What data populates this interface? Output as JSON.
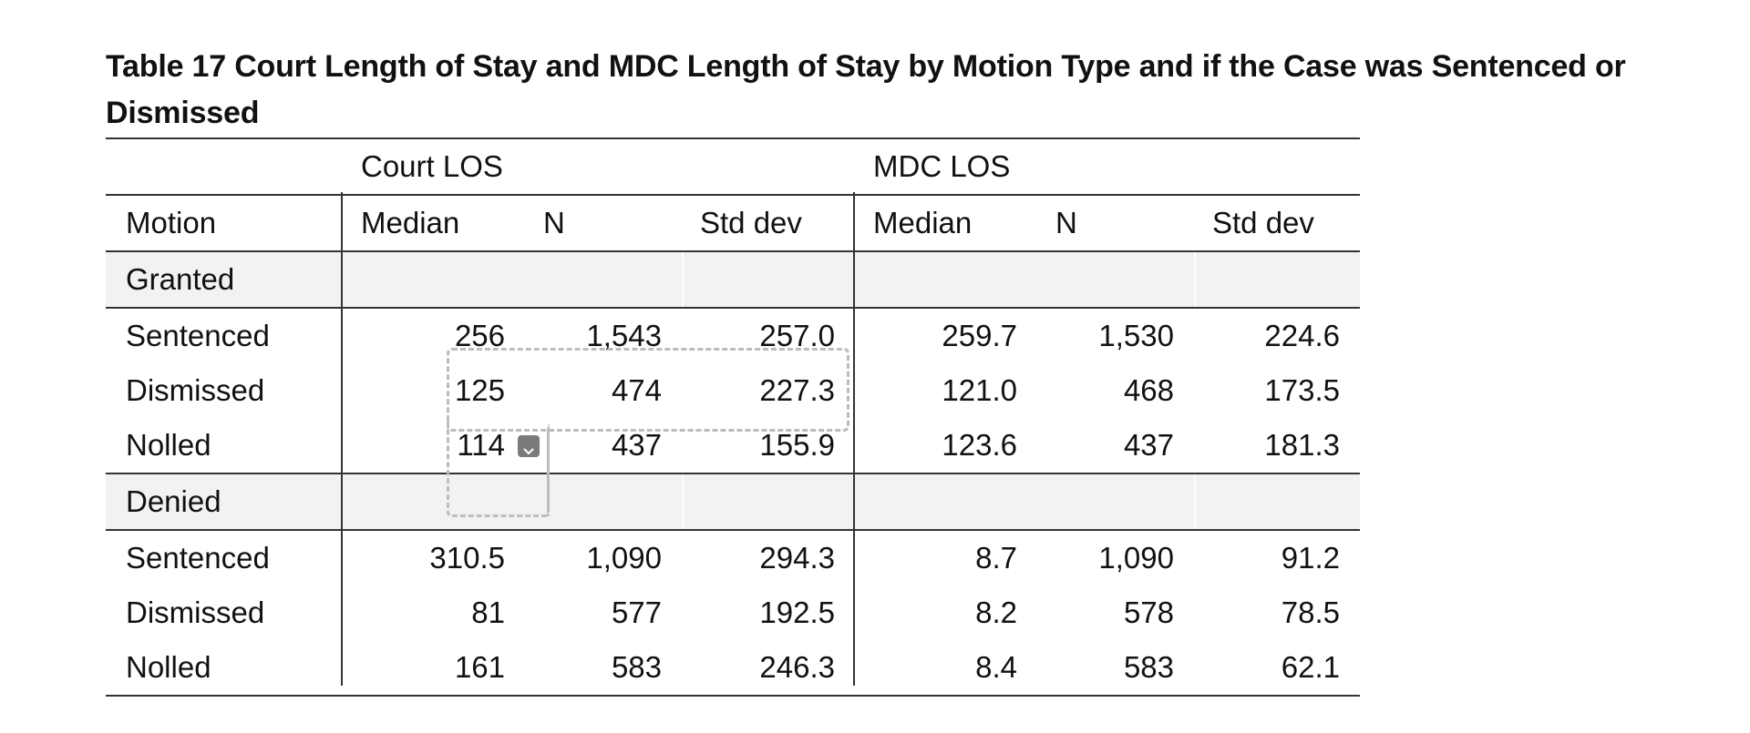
{
  "caption": "Table 17 Court Length of Stay and MDC Length of Stay by Motion Type and if the Case was Sentenced or Dismissed",
  "group_headers": {
    "court": "Court LOS",
    "mdc": "MDC LOS"
  },
  "columns": {
    "motion": "Motion",
    "court_median": "Median",
    "court_n": "N",
    "court_std": "Std dev",
    "mdc_median": "Median",
    "mdc_n": "N",
    "mdc_std": "Std dev"
  },
  "groups": [
    {
      "label": "Granted",
      "rows": [
        {
          "motion": "Sentenced",
          "court_median": "256",
          "court_n": "1,543",
          "court_std": "257.0",
          "mdc_median": "259.7",
          "mdc_n": "1,530",
          "mdc_std": "224.6"
        },
        {
          "motion": "Dismissed",
          "court_median": "125",
          "court_n": "474",
          "court_std": "227.3",
          "mdc_median": "121.0",
          "mdc_n": "468",
          "mdc_std": "173.5"
        },
        {
          "motion": "Nolled",
          "court_median": "114",
          "court_n": "437",
          "court_std": "155.9",
          "mdc_median": "123.6",
          "mdc_n": "437",
          "mdc_std": "181.3"
        }
      ]
    },
    {
      "label": "Denied",
      "rows": [
        {
          "motion": "Sentenced",
          "court_median": "310.5",
          "court_n": "1,090",
          "court_std": "294.3",
          "mdc_median": "8.7",
          "mdc_n": "1,090",
          "mdc_std": "91.2"
        },
        {
          "motion": "Dismissed",
          "court_median": "81",
          "court_n": "577",
          "court_std": "192.5",
          "mdc_median": "8.2",
          "mdc_n": "578",
          "mdc_std": "78.5"
        },
        {
          "motion": "Nolled",
          "court_median": "161",
          "court_n": "583",
          "court_std": "246.3",
          "mdc_median": "8.4",
          "mdc_n": "583",
          "mdc_std": "62.1"
        }
      ]
    }
  ],
  "icons": {
    "cell_dropdown": "chevron-down-icon"
  },
  "colors": {
    "group_row_bg": "#f2f2f2",
    "rule": "#333333",
    "selection": "#bcbcbc"
  }
}
